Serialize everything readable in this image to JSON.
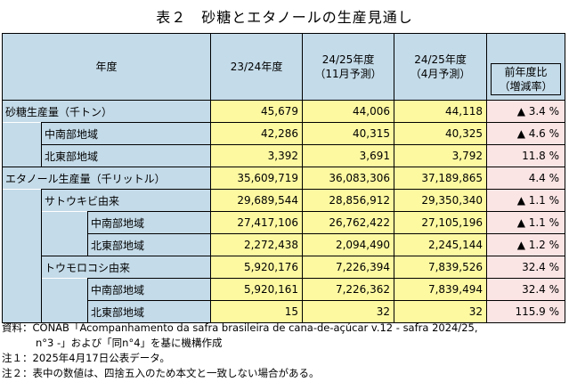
{
  "title": "表２　砂糖とエタノールの生産見通し",
  "header": {
    "col0": "年度",
    "col1": "23/24年度",
    "col2_line1": "24/25年度",
    "col2_line2": "（11月予測）",
    "col3_line1": "24/25年度",
    "col3_line2": "（4月予測）",
    "col4_line1": "前年度比",
    "col4_line2": "（増減率）"
  },
  "rows": [
    {
      "label": "砂糖生産量（千トン）",
      "v1": "45,679",
      "v2": "44,006",
      "v3": "44,118",
      "pct": "▲ 3.4 %"
    },
    {
      "label": "中南部地域",
      "v1": "42,286",
      "v2": "40,315",
      "v3": "40,325",
      "pct": "▲ 4.6 %"
    },
    {
      "label": "北東部地域",
      "v1": "3,392",
      "v2": "3,691",
      "v3": "3,792",
      "pct": "11.8 %"
    },
    {
      "label": "エタノール生産量（千リットル）",
      "v1": "35,609,719",
      "v2": "36,083,306",
      "v3": "37,189,865",
      "pct": "4.4 %"
    },
    {
      "label": "サトウキビ由来",
      "v1": "29,689,544",
      "v2": "28,856,912",
      "v3": "29,350,340",
      "pct": "▲ 1.1 %"
    },
    {
      "label": "中南部地域",
      "v1": "27,417,106",
      "v2": "26,762,422",
      "v3": "27,105,196",
      "pct": "▲ 1.1 %"
    },
    {
      "label": "北東部地域",
      "v1": "2,272,438",
      "v2": "2,094,490",
      "v3": "2,245,144",
      "pct": "▲ 1.2 %"
    },
    {
      "label": "トウモロコシ由来",
      "v1": "5,920,176",
      "v2": "7,226,394",
      "v3": "7,839,526",
      "pct": "32.4 %"
    },
    {
      "label": "中南部地域",
      "v1": "5,920,161",
      "v2": "7,226,362",
      "v3": "7,839,494",
      "pct": "32.4 %"
    },
    {
      "label": "北東部地域",
      "v1": "15",
      "v2": "32",
      "v3": "32",
      "pct": "115.9 %"
    }
  ],
  "notes": {
    "source_line1": "資料：CONAB「Acompanhamento da safra brasileira de cana-de-açúcar v.12 - safra 2024/25,",
    "source_line2": "n°3 -」および「同n°4」を基に機構作成",
    "note1": "注１：2025年4月17日公表データ。",
    "note2": "注２：表中の数値は、四捨五入のため本文と一致しない場合がある。"
  }
}
